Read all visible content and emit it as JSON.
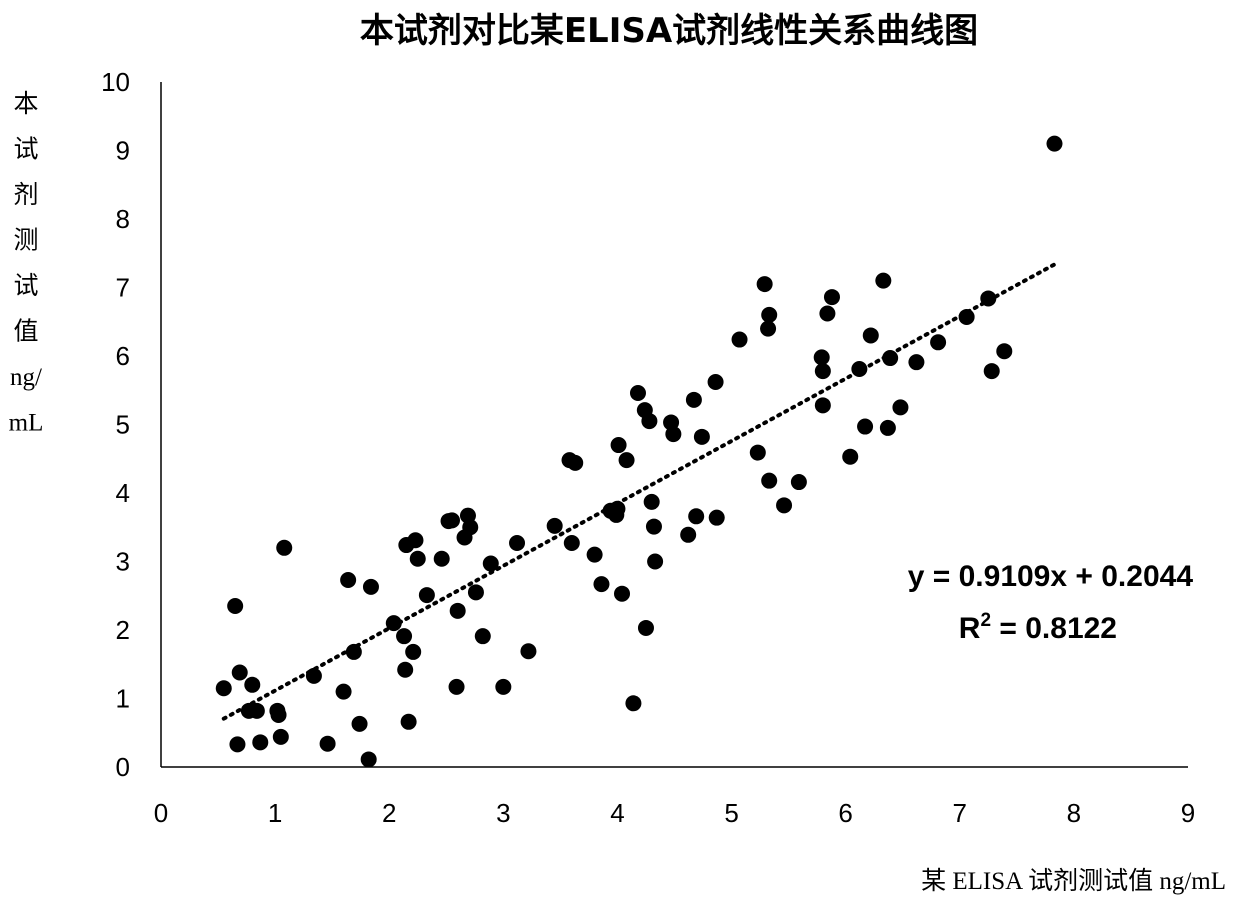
{
  "chart_data": {
    "type": "scatter",
    "title": "本试剂对比某ELISA试剂线性关系曲线图",
    "xlabel": "某 ELISA 试剂测试值 ng/mL",
    "ylabel": "本试剂测试值ng/mL",
    "ylabel_lines": [
      "本",
      "试",
      "剂",
      "测",
      "试",
      "值",
      "ng/",
      "mL"
    ],
    "xlim": [
      0,
      9
    ],
    "ylim": [
      0,
      10
    ],
    "xticks": [
      "0",
      "1",
      "2",
      "3",
      "4",
      "5",
      "6",
      "7",
      "8",
      "9"
    ],
    "yticks": [
      "0",
      "1",
      "2",
      "3",
      "4",
      "5",
      "6",
      "7",
      "8",
      "9",
      "10"
    ],
    "grid": false,
    "legend": false,
    "marker_color": "#000000",
    "trendline": {
      "type": "linear",
      "style": "dotted",
      "slope": 0.9109,
      "intercept": 0.2044,
      "x_range": [
        0.55,
        7.85
      ],
      "equation_label": "y = 0.9109x + 0.2044",
      "r2_prefix": "R",
      "r2_sup": "2",
      "r2_value": " = 0.8122"
    },
    "points": [
      [
        0.55,
        1.15
      ],
      [
        0.65,
        2.35
      ],
      [
        0.67,
        0.33
      ],
      [
        0.69,
        1.38
      ],
      [
        0.77,
        0.82
      ],
      [
        0.8,
        1.2
      ],
      [
        0.84,
        0.82
      ],
      [
        0.87,
        0.36
      ],
      [
        1.02,
        0.82
      ],
      [
        1.03,
        0.76
      ],
      [
        1.05,
        0.44
      ],
      [
        1.08,
        3.2
      ],
      [
        1.34,
        1.33
      ],
      [
        1.46,
        0.34
      ],
      [
        1.6,
        1.1
      ],
      [
        1.64,
        2.73
      ],
      [
        1.69,
        1.68
      ],
      [
        1.74,
        0.63
      ],
      [
        1.82,
        0.11
      ],
      [
        1.84,
        2.63
      ],
      [
        2.04,
        2.1
      ],
      [
        2.13,
        1.91
      ],
      [
        2.14,
        1.42
      ],
      [
        2.15,
        3.24
      ],
      [
        2.17,
        0.66
      ],
      [
        2.21,
        1.68
      ],
      [
        2.23,
        3.31
      ],
      [
        2.25,
        3.04
      ],
      [
        2.33,
        2.51
      ],
      [
        2.46,
        3.04
      ],
      [
        2.52,
        3.59
      ],
      [
        2.55,
        3.6
      ],
      [
        2.59,
        1.17
      ],
      [
        2.6,
        2.28
      ],
      [
        2.66,
        3.35
      ],
      [
        2.69,
        3.67
      ],
      [
        2.71,
        3.5
      ],
      [
        2.76,
        2.55
      ],
      [
        2.82,
        1.91
      ],
      [
        2.89,
        2.97
      ],
      [
        3.0,
        1.17
      ],
      [
        3.12,
        3.27
      ],
      [
        3.22,
        1.69
      ],
      [
        3.45,
        3.52
      ],
      [
        3.58,
        4.48
      ],
      [
        3.6,
        3.27
      ],
      [
        3.63,
        4.44
      ],
      [
        3.8,
        3.1
      ],
      [
        3.86,
        2.67
      ],
      [
        3.94,
        3.74
      ],
      [
        3.99,
        3.68
      ],
      [
        4.0,
        3.77
      ],
      [
        4.01,
        4.7
      ],
      [
        4.04,
        2.53
      ],
      [
        4.08,
        4.48
      ],
      [
        4.14,
        0.93
      ],
      [
        4.18,
        5.46
      ],
      [
        4.24,
        5.21
      ],
      [
        4.25,
        2.03
      ],
      [
        4.28,
        5.05
      ],
      [
        4.3,
        3.87
      ],
      [
        4.32,
        3.51
      ],
      [
        4.33,
        3.0
      ],
      [
        4.47,
        5.03
      ],
      [
        4.49,
        4.86
      ],
      [
        4.62,
        3.39
      ],
      [
        4.67,
        5.36
      ],
      [
        4.69,
        3.66
      ],
      [
        4.74,
        4.82
      ],
      [
        4.86,
        5.62
      ],
      [
        4.87,
        3.64
      ],
      [
        5.07,
        6.24
      ],
      [
        5.23,
        4.59
      ],
      [
        5.29,
        7.05
      ],
      [
        5.32,
        6.4
      ],
      [
        5.33,
        6.6
      ],
      [
        5.33,
        4.18
      ],
      [
        5.46,
        3.82
      ],
      [
        5.59,
        4.16
      ],
      [
        5.79,
        5.98
      ],
      [
        5.8,
        5.78
      ],
      [
        5.8,
        5.28
      ],
      [
        5.84,
        6.62
      ],
      [
        5.88,
        6.86
      ],
      [
        6.04,
        4.53
      ],
      [
        6.12,
        5.81
      ],
      [
        6.17,
        4.97
      ],
      [
        6.22,
        6.3
      ],
      [
        6.33,
        7.1
      ],
      [
        6.37,
        4.95
      ],
      [
        6.39,
        5.97
      ],
      [
        6.48,
        5.25
      ],
      [
        6.62,
        5.91
      ],
      [
        6.81,
        6.2
      ],
      [
        7.06,
        6.57
      ],
      [
        7.25,
        6.84
      ],
      [
        7.28,
        5.78
      ],
      [
        7.39,
        6.07
      ],
      [
        7.83,
        9.1
      ]
    ]
  }
}
